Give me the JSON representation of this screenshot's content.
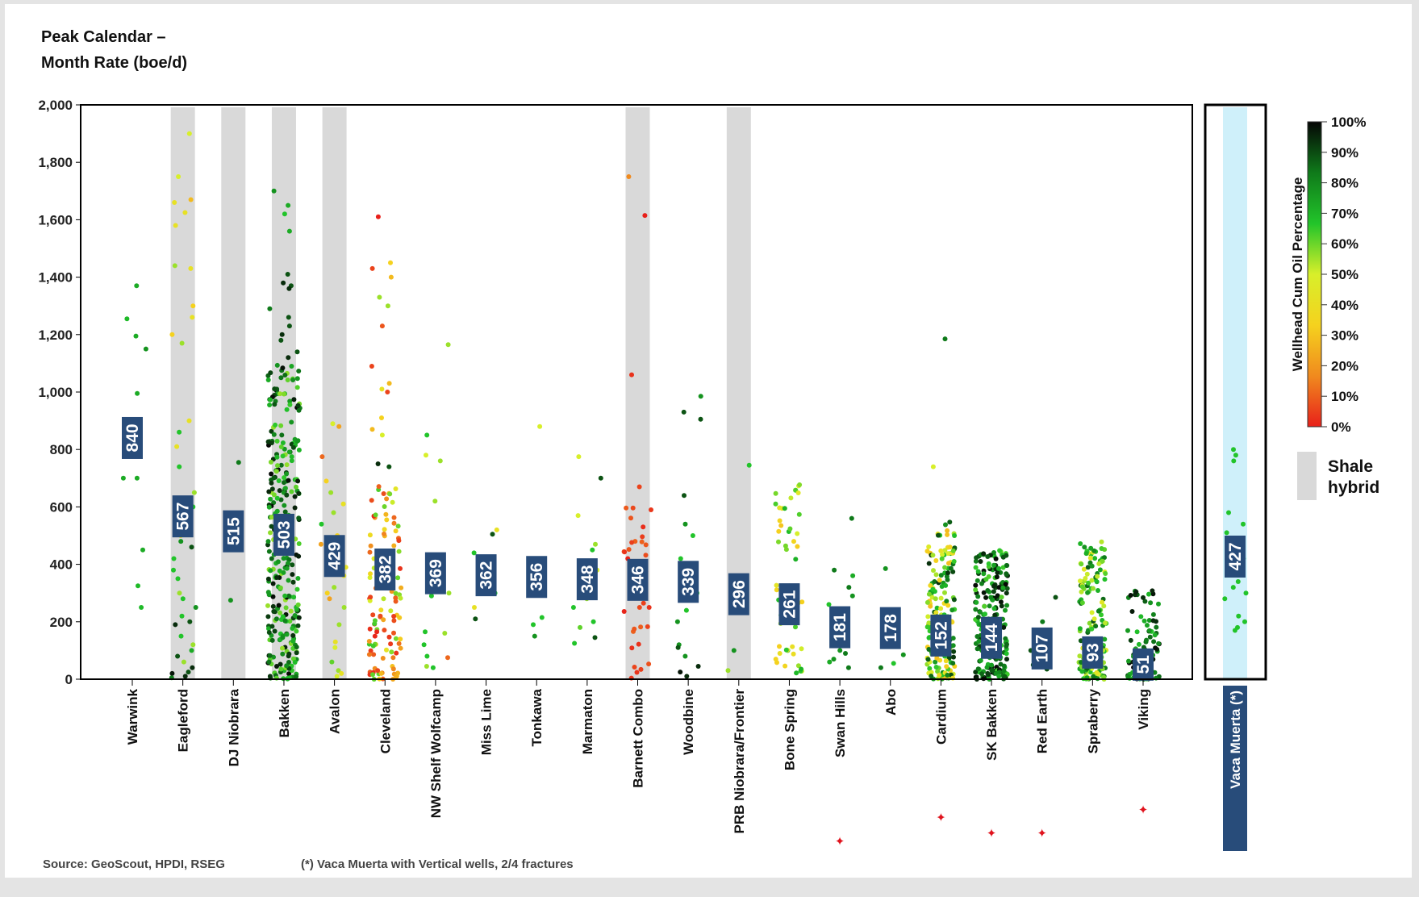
{
  "chart_data": {
    "type": "scatter",
    "title_lines": [
      "Peak Calendar –",
      "Month Rate (boe/d)"
    ],
    "ylim": [
      0,
      2000
    ],
    "yticks": [
      "0",
      "200",
      "400",
      "600",
      "800",
      "1,000",
      "1,200",
      "1,400",
      "1,600",
      "1,800",
      "2,000"
    ],
    "colorbar": {
      "label": "Wellhead Cum Oil Percentage",
      "ticks": [
        "0%",
        "10%",
        "20%",
        "30%",
        "40%",
        "50%",
        "60%",
        "70%",
        "80%",
        "90%",
        "100%"
      ],
      "colors": [
        "#e8201a",
        "#f08a1e",
        "#f5d21e",
        "#d8ef2a",
        "#22c42a",
        "#0f7a1a",
        "#050505"
      ]
    },
    "legend": {
      "label_lines": [
        "Shale",
        "hybrid"
      ],
      "color": "#d9d9d9"
    },
    "plays": [
      {
        "name": "Warwink",
        "median": 840,
        "shale_hybrid": false,
        "canadian": false,
        "points": [
          [
            1370,
            0.75
          ],
          [
            1255,
            0.72
          ],
          [
            1195,
            0.75
          ],
          [
            1150,
            0.8
          ],
          [
            995,
            0.75
          ],
          [
            700,
            0.75
          ],
          [
            700,
            0.75
          ],
          [
            450,
            0.75
          ],
          [
            325,
            0.72
          ],
          [
            250,
            0.72
          ]
        ]
      },
      {
        "name": "Eagleford",
        "median": 567,
        "shale_hybrid": true,
        "canadian": false,
        "points": [
          [
            1900,
            0.55
          ],
          [
            1750,
            0.55
          ],
          [
            1670,
            0.4
          ],
          [
            1660,
            0.5
          ],
          [
            1625,
            0.5
          ],
          [
            1580,
            0.5
          ],
          [
            1440,
            0.6
          ],
          [
            1430,
            0.5
          ],
          [
            1300,
            0.45
          ],
          [
            1260,
            0.5
          ],
          [
            1200,
            0.45
          ],
          [
            1170,
            0.6
          ],
          [
            900,
            0.5
          ],
          [
            860,
            0.7
          ],
          [
            810,
            0.5
          ],
          [
            740,
            0.7
          ],
          [
            650,
            0.6
          ],
          [
            600,
            0.7
          ],
          [
            500,
            0.5
          ],
          [
            480,
            0.8
          ],
          [
            460,
            0.9
          ],
          [
            420,
            0.7
          ],
          [
            380,
            0.7
          ],
          [
            350,
            0.7
          ],
          [
            300,
            0.6
          ],
          [
            280,
            0.7
          ],
          [
            250,
            0.8
          ],
          [
            220,
            0.7
          ],
          [
            200,
            0.9
          ],
          [
            190,
            0.95
          ],
          [
            150,
            0.7
          ],
          [
            120,
            0.6
          ],
          [
            100,
            0.75
          ],
          [
            80,
            0.9
          ],
          [
            60,
            0.6
          ],
          [
            40,
            0.95
          ],
          [
            25,
            0.9
          ],
          [
            20,
            0.98
          ],
          [
            10,
            0.95
          ],
          [
            5,
            0.85
          ]
        ]
      },
      {
        "name": "DJ Niobrara",
        "median": 515,
        "shale_hybrid": true,
        "canadian": false,
        "points": [
          [
            755,
            0.85
          ],
          [
            275,
            0.8
          ]
        ]
      },
      {
        "name": "Bakken",
        "median": 503,
        "shale_hybrid": true,
        "canadian": false,
        "points": []
      },
      {
        "name": "Avalon",
        "median": 429,
        "shale_hybrid": true,
        "canadian": false,
        "points": [
          [
            890,
            0.55
          ],
          [
            880,
            0.35
          ],
          [
            775,
            0.2
          ],
          [
            690,
            0.45
          ],
          [
            650,
            0.6
          ],
          [
            610,
            0.5
          ],
          [
            580,
            0.6
          ],
          [
            540,
            0.7
          ],
          [
            500,
            0.45
          ],
          [
            470,
            0.35
          ],
          [
            420,
            0.6
          ],
          [
            390,
            0.5
          ],
          [
            360,
            0.5
          ],
          [
            320,
            0.6
          ],
          [
            300,
            0.45
          ],
          [
            280,
            0.35
          ],
          [
            250,
            0.6
          ],
          [
            190,
            0.6
          ],
          [
            130,
            0.5
          ],
          [
            110,
            0.55
          ],
          [
            60,
            0.65
          ],
          [
            30,
            0.6
          ],
          [
            20,
            0.5
          ],
          [
            10,
            0.55
          ]
        ]
      },
      {
        "name": "Cleveland",
        "median": 382,
        "shale_hybrid": false,
        "canadian": false,
        "points": []
      },
      {
        "name": "NW Shelf Wolfcamp",
        "median": 369,
        "shale_hybrid": false,
        "canadian": false,
        "points": [
          [
            1165,
            0.6
          ],
          [
            850,
            0.7
          ],
          [
            780,
            0.55
          ],
          [
            760,
            0.6
          ],
          [
            620,
            0.6
          ],
          [
            300,
            0.6
          ],
          [
            290,
            0.7
          ],
          [
            165,
            0.7
          ],
          [
            160,
            0.6
          ],
          [
            120,
            0.7
          ],
          [
            80,
            0.7
          ],
          [
            75,
            0.2
          ],
          [
            45,
            0.6
          ],
          [
            40,
            0.7
          ]
        ]
      },
      {
        "name": "Miss Lime",
        "median": 362,
        "shale_hybrid": false,
        "canadian": false,
        "points": [
          [
            520,
            0.5
          ],
          [
            505,
            0.9
          ],
          [
            440,
            0.7
          ],
          [
            300,
            0.7
          ],
          [
            250,
            0.5
          ],
          [
            210,
            0.9
          ]
        ]
      },
      {
        "name": "Tonkawa",
        "median": 356,
        "shale_hybrid": false,
        "canadian": false,
        "points": [
          [
            880,
            0.55
          ],
          [
            215,
            0.7
          ],
          [
            190,
            0.7
          ],
          [
            150,
            0.8
          ]
        ]
      },
      {
        "name": "Marmaton",
        "median": 348,
        "shale_hybrid": false,
        "canadian": false,
        "points": [
          [
            775,
            0.55
          ],
          [
            700,
            0.9
          ],
          [
            570,
            0.55
          ],
          [
            470,
            0.6
          ],
          [
            450,
            0.7
          ],
          [
            380,
            0.55
          ],
          [
            330,
            0.7
          ],
          [
            280,
            0.6
          ],
          [
            250,
            0.7
          ],
          [
            200,
            0.7
          ],
          [
            180,
            0.65
          ],
          [
            145,
            0.9
          ],
          [
            125,
            0.7
          ]
        ]
      },
      {
        "name": "Barnett Combo",
        "median": 346,
        "shale_hybrid": true,
        "canadian": false,
        "points": []
      },
      {
        "name": "Woodbine",
        "median": 339,
        "shale_hybrid": false,
        "canadian": false,
        "points": [
          [
            985,
            0.8
          ],
          [
            930,
            0.9
          ],
          [
            905,
            0.9
          ],
          [
            640,
            0.9
          ],
          [
            540,
            0.8
          ],
          [
            500,
            0.7
          ],
          [
            420,
            0.7
          ],
          [
            300,
            0.7
          ],
          [
            240,
            0.7
          ],
          [
            200,
            0.8
          ],
          [
            120,
            0.8
          ],
          [
            110,
            0.9
          ],
          [
            80,
            0.8
          ],
          [
            45,
            0.95
          ],
          [
            25,
            0.98
          ],
          [
            10,
            0.95
          ]
        ]
      },
      {
        "name": "PRB Niobrara/Frontier",
        "median": 296,
        "shale_hybrid": true,
        "canadian": false,
        "points": [
          [
            745,
            0.7
          ],
          [
            100,
            0.8
          ],
          [
            30,
            0.6
          ]
        ]
      },
      {
        "name": "Bone Spring",
        "median": 261,
        "shale_hybrid": false,
        "canadian": false,
        "points": []
      },
      {
        "name": "Swan Hills",
        "median": 181,
        "shale_hybrid": false,
        "canadian": true,
        "points": [
          [
            560,
            0.85
          ],
          [
            380,
            0.85
          ],
          [
            360,
            0.75
          ],
          [
            320,
            0.85
          ],
          [
            290,
            0.8
          ],
          [
            260,
            0.7
          ],
          [
            220,
            0.8
          ],
          [
            200,
            0.85
          ],
          [
            160,
            0.8
          ],
          [
            120,
            0.9
          ],
          [
            100,
            0.8
          ],
          [
            90,
            0.85
          ],
          [
            70,
            0.8
          ],
          [
            60,
            0.75
          ],
          [
            40,
            0.85
          ]
        ]
      },
      {
        "name": "Abo",
        "median": 178,
        "shale_hybrid": false,
        "canadian": false,
        "points": [
          [
            385,
            0.8
          ],
          [
            85,
            0.8
          ],
          [
            55,
            0.7
          ],
          [
            40,
            0.85
          ]
        ]
      },
      {
        "name": "Cardium",
        "median": 152,
        "shale_hybrid": false,
        "canadian": true,
        "points": []
      },
      {
        "name": "SK Bakken",
        "median": 144,
        "shale_hybrid": false,
        "canadian": true,
        "points": []
      },
      {
        "name": "Red Earth",
        "median": 107,
        "shale_hybrid": false,
        "canadian": true,
        "points": [
          [
            285,
            0.9
          ],
          [
            200,
            0.85
          ],
          [
            160,
            0.95
          ],
          [
            140,
            0.9
          ],
          [
            120,
            0.85
          ],
          [
            100,
            0.9
          ],
          [
            70,
            0.95
          ],
          [
            50,
            0.9
          ],
          [
            40,
            0.95
          ],
          [
            35,
            0.9
          ]
        ]
      },
      {
        "name": "Spraberry",
        "median": 93,
        "shale_hybrid": false,
        "canadian": false,
        "points": []
      },
      {
        "name": "Viking",
        "median": 51,
        "shale_hybrid": false,
        "canadian": true,
        "points": []
      }
    ],
    "inset": {
      "name": "Vaca Muerta (*)",
      "median": 427,
      "points": [
        [
          800,
          0.7
        ],
        [
          780,
          0.7
        ],
        [
          760,
          0.7
        ],
        [
          580,
          0.7
        ],
        [
          540,
          0.7
        ],
        [
          510,
          0.7
        ],
        [
          420,
          0.7
        ],
        [
          380,
          0.7
        ],
        [
          340,
          0.7
        ],
        [
          320,
          0.7
        ],
        [
          300,
          0.7
        ],
        [
          280,
          0.7
        ],
        [
          220,
          0.7
        ],
        [
          200,
          0.7
        ],
        [
          180,
          0.7
        ],
        [
          170,
          0.7
        ]
      ]
    }
  },
  "footer": {
    "source": "Source: GeoScout, HPDI, RSEG",
    "note": "(*)  Vaca Muerta with Vertical wells, 2/4 fractures"
  }
}
